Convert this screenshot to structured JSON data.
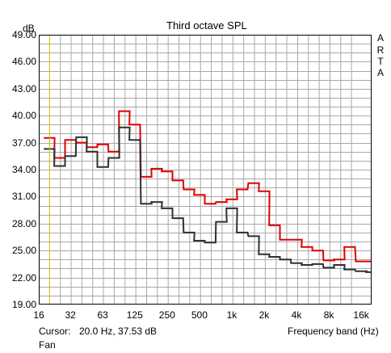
{
  "header": {
    "unit": "dB",
    "title": "Third octave SPL"
  },
  "brand": [
    "A",
    "R",
    "T",
    "A"
  ],
  "footer": {
    "cursor_label": "Cursor:",
    "cursor_value": "20.0 Hz, 37.53 dB",
    "xlabel": "Frequency band (Hz)",
    "name": "Fan"
  },
  "chart_data": {
    "type": "line",
    "title": "Third octave SPL",
    "ylabel": "dB",
    "xlabel": "Frequency band (Hz)",
    "ylim": [
      19.0,
      49.0
    ],
    "xlim_hz": [
      16,
      20000
    ],
    "y_ticks": [
      "49.00",
      "46.00",
      "43.00",
      "40.00",
      "37.00",
      "34.00",
      "31.00",
      "28.00",
      "25.00",
      "22.00",
      "19.00"
    ],
    "x_ticks": [
      {
        "hz": 16,
        "label": "16"
      },
      {
        "hz": 31.5,
        "label": "32"
      },
      {
        "hz": 63,
        "label": "63"
      },
      {
        "hz": 125,
        "label": "125"
      },
      {
        "hz": 250,
        "label": "250"
      },
      {
        "hz": 500,
        "label": "500"
      },
      {
        "hz": 1000,
        "label": "1k"
      },
      {
        "hz": 2000,
        "label": "2k"
      },
      {
        "hz": 4000,
        "label": "4k"
      },
      {
        "hz": 8000,
        "label": "8k"
      },
      {
        "hz": 16000,
        "label": "16k"
      }
    ],
    "bands_hz": [
      20,
      25,
      31.5,
      40,
      50,
      63,
      80,
      100,
      125,
      160,
      200,
      250,
      315,
      400,
      500,
      630,
      800,
      1000,
      1250,
      1600,
      2000,
      2500,
      3150,
      4000,
      5000,
      6300,
      8000,
      10000,
      12500,
      16000,
      20000
    ],
    "series": [
      {
        "color": "#e00000",
        "values": [
          37.53,
          35.3,
          37.3,
          37.0,
          36.5,
          36.8,
          36.0,
          40.5,
          39.0,
          33.2,
          34.1,
          33.8,
          32.8,
          31.8,
          31.2,
          30.2,
          30.4,
          30.7,
          31.8,
          32.5,
          31.6,
          27.8,
          26.2,
          26.2,
          25.4,
          25.0,
          23.9,
          24.0,
          25.4,
          23.8,
          23.8
        ]
      },
      {
        "color": "#303030",
        "values": [
          36.3,
          34.4,
          35.5,
          37.6,
          36.0,
          34.3,
          35.3,
          38.7,
          37.3,
          30.2,
          30.4,
          29.7,
          28.6,
          27.0,
          26.1,
          25.9,
          28.2,
          29.7,
          27.0,
          26.6,
          24.6,
          24.3,
          24.0,
          23.6,
          23.4,
          23.5,
          23.1,
          23.4,
          22.9,
          22.7,
          22.6
        ]
      }
    ],
    "cursor": {
      "hz": 20.0,
      "color": "#d8c800"
    },
    "grid": true,
    "colors": {
      "background": "#ffffff",
      "plot_bg": "#ffffff",
      "grid": "#a8a8a8",
      "frame": "#000000"
    }
  }
}
